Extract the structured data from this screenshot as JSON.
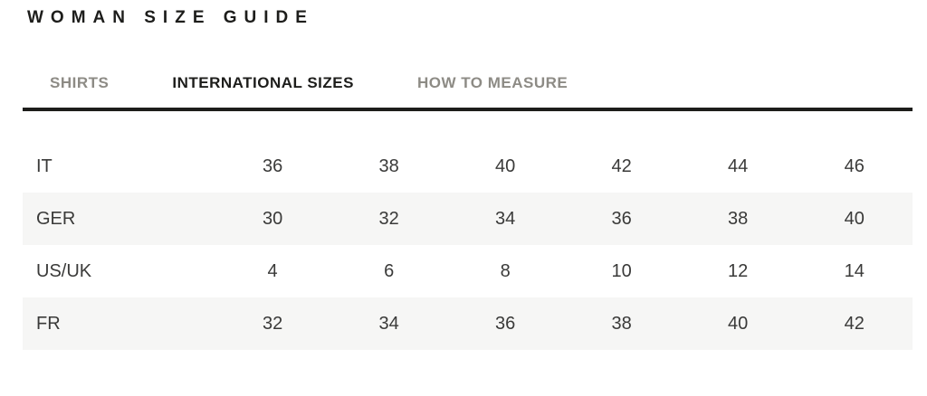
{
  "page": {
    "title": "WOMAN SIZE GUIDE"
  },
  "tabs": [
    {
      "label": "SHIRTS",
      "active": false
    },
    {
      "label": "INTERNATIONAL SIZES",
      "active": true
    },
    {
      "label": "HOW TO MEASURE",
      "active": false
    }
  ],
  "size_table": {
    "rows": [
      {
        "label": "IT",
        "values": [
          "36",
          "38",
          "40",
          "42",
          "44",
          "46"
        ]
      },
      {
        "label": "GER",
        "values": [
          "30",
          "32",
          "34",
          "36",
          "38",
          "40"
        ]
      },
      {
        "label": "US/UK",
        "values": [
          "4",
          "6",
          "8",
          "10",
          "12",
          "14"
        ]
      },
      {
        "label": "FR",
        "values": [
          "32",
          "34",
          "36",
          "38",
          "40",
          "42"
        ]
      }
    ]
  },
  "colors": {
    "text_dark": "#1d1d1b",
    "text_muted": "#8d8b85",
    "table_text": "#3a3a39",
    "row_stripe": "#f6f6f5",
    "underline": "#1d1d1b"
  }
}
